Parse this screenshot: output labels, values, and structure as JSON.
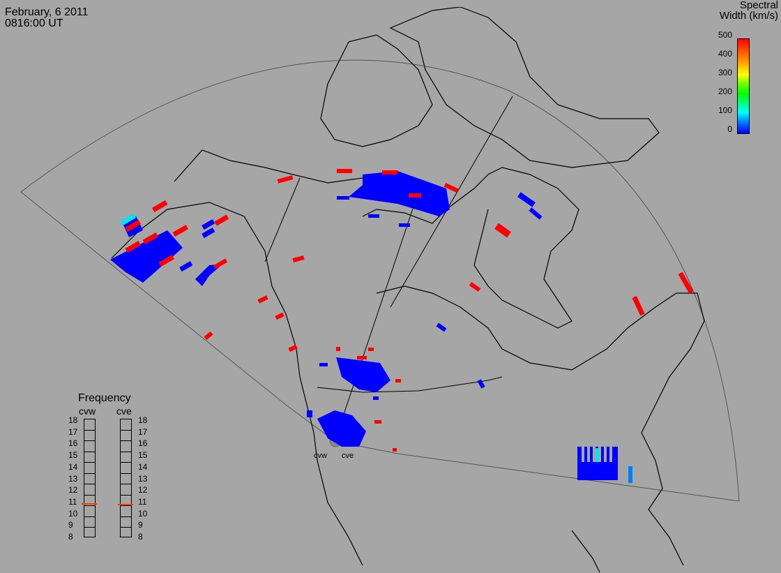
{
  "header": {
    "date": "February, 6 2011",
    "time": "0816:00 UT"
  },
  "colorbar": {
    "title_line1": "Spectral",
    "title_line2": "Width (km/s)",
    "ticks": [
      "500",
      "400",
      "300",
      "200",
      "100",
      "0"
    ],
    "min": 0,
    "max": 500,
    "colors": {
      "low": "#0000ff",
      "mid": "#00ffff",
      "high": "#ff0000"
    }
  },
  "frequency": {
    "title": "Frequency",
    "left_label": "cvw",
    "right_label": "cve",
    "ticks": [
      "18",
      "17",
      "16",
      "15",
      "14",
      "13",
      "12",
      "11",
      "10",
      "9",
      "8"
    ],
    "cvw_value": 10.9,
    "cve_value": 10.8,
    "marker_color": "#ff3b00"
  },
  "radars": {
    "west": "cvw",
    "east": "cve"
  }
}
